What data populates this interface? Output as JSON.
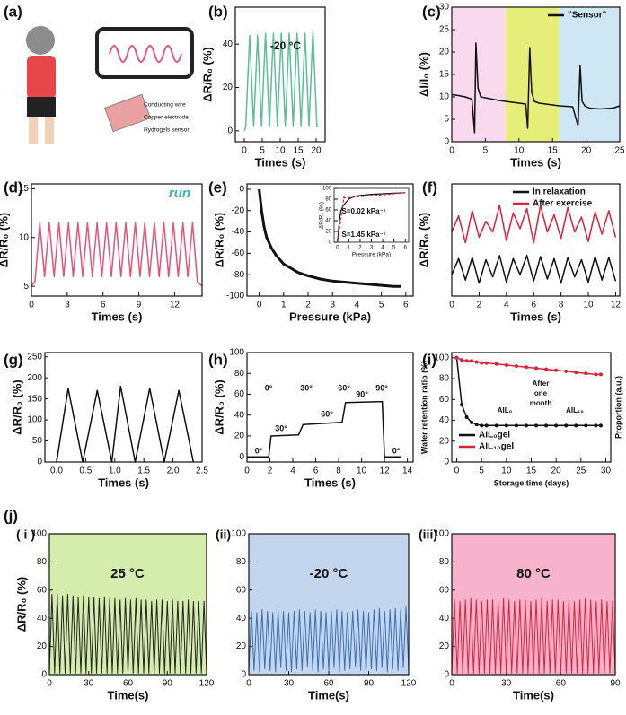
{
  "illustration": {
    "label": "(a)",
    "callouts": [
      "Conducting wire",
      "Copper electrode",
      "Hydrogels sensor"
    ]
  },
  "chart_data": [
    {
      "type": "line",
      "label": "(b)",
      "xlabel": "Times (s)",
      "ylabel": "ΔR/R₀ (%)",
      "annotations": [
        "-20 °C"
      ],
      "xlim": [
        -2.5,
        22.5
      ],
      "xticks": [
        0,
        5,
        10,
        15,
        20
      ],
      "ylim": [
        -5,
        57
      ],
      "yticks": [
        0,
        20,
        40
      ],
      "color": "#5cbf94",
      "x": [
        0,
        0.4,
        1.5,
        2.6,
        3.7,
        4.8,
        5.9,
        7.0,
        8.1,
        9.2,
        10.3,
        11.4,
        12.5,
        13.6,
        14.7,
        15.8,
        16.9,
        18.0,
        19.1,
        20.2,
        20.6
      ],
      "values": [
        0,
        2,
        44,
        2,
        44,
        2,
        45,
        2,
        45,
        2,
        45,
        2,
        45,
        2,
        45,
        2,
        45,
        2,
        46,
        2,
        2
      ]
    },
    {
      "type": "line",
      "label": "(c)",
      "xlabel": "Times (s)",
      "ylabel": "ΔI/I₀ (%)",
      "legend": "upper right",
      "xlim": [
        0,
        25
      ],
      "xticks": [
        0,
        5,
        10,
        15,
        20,
        25
      ],
      "ylim": [
        0,
        30
      ],
      "yticks": [
        0,
        5,
        10,
        15,
        20,
        25,
        30
      ],
      "bands": [
        {
          "from": 0,
          "to": 8,
          "color": "#f9d9ee"
        },
        {
          "from": 8,
          "to": 16,
          "color": "#e6ee7a"
        },
        {
          "from": 16,
          "to": 25,
          "color": "#cfe6f4"
        }
      ],
      "series": [
        {
          "name": "\"Sensor\"",
          "color": "#111111",
          "x": [
            0,
            1,
            2,
            3,
            3.4,
            3.6,
            3.9,
            4.3,
            5,
            6,
            7,
            8,
            9,
            10,
            11,
            11.3,
            11.6,
            11.9,
            12.3,
            13,
            14,
            15,
            16,
            17,
            18,
            18.8,
            19.1,
            19.4,
            19.8,
            20.5,
            22,
            24,
            25
          ],
          "values": [
            10.5,
            10.3,
            10,
            9.5,
            2,
            22,
            12,
            10,
            9.8,
            9.5,
            9.2,
            9,
            8.8,
            8.6,
            8.4,
            3,
            21,
            11,
            9,
            8.6,
            8.4,
            8.2,
            8,
            7.9,
            7.8,
            3.5,
            17,
            9,
            8,
            7.5,
            7.3,
            7.5,
            8
          ]
        }
      ]
    },
    {
      "type": "line",
      "label": "(d)",
      "xlabel": "Times (s)",
      "ylabel": "ΔR/R₀ (%)",
      "annotations": [
        "run"
      ],
      "xlim": [
        0,
        14.3
      ],
      "xticks": [
        0,
        3,
        6,
        9,
        12
      ],
      "ylim": [
        4,
        15.5
      ],
      "yticks": [
        5,
        10,
        15
      ],
      "color": "#e8537a",
      "x": [
        0,
        0.3,
        0.7,
        1.1,
        1.5,
        1.9,
        2.3,
        2.7,
        3.1,
        3.5,
        3.9,
        4.3,
        4.7,
        5.1,
        5.5,
        5.9,
        6.3,
        6.7,
        7.1,
        7.5,
        7.9,
        8.3,
        8.7,
        9.1,
        9.5,
        9.9,
        10.3,
        10.7,
        11.1,
        11.5,
        11.9,
        12.3,
        12.7,
        13.1,
        13.5,
        13.9,
        14.3
      ],
      "values": [
        5,
        5.5,
        11.5,
        6,
        11.5,
        6,
        11.5,
        6,
        11.5,
        6,
        11.5,
        6,
        11.5,
        6,
        11.5,
        6,
        11.5,
        6,
        11.5,
        6,
        11.5,
        6,
        11.5,
        6,
        11.5,
        6,
        11.5,
        6,
        11.5,
        6,
        11.5,
        6,
        11.5,
        6,
        11.5,
        5.5,
        5
      ]
    },
    {
      "type": "line",
      "label": "(e)",
      "xlabel": "Pressure (kPa)",
      "ylabel": "ΔR/R₀ (%)",
      "annotations": [
        "S=0.02 kPa⁻¹",
        "S=1.45 kPa⁻¹"
      ],
      "xlim": [
        -0.5,
        6.3
      ],
      "xticks": [
        0,
        1,
        2,
        3,
        4,
        5,
        6
      ],
      "ylim": [
        -100,
        5
      ],
      "yticks": [
        0,
        -20,
        -40,
        -60,
        -80,
        -100
      ],
      "color": "#111111",
      "x": [
        0,
        0.1,
        0.2,
        0.3,
        0.5,
        0.7,
        1,
        1.3,
        1.6,
        2,
        2.5,
        3,
        3.5,
        4,
        4.5,
        5,
        5.5,
        5.8
      ],
      "values": [
        0,
        -20,
        -35,
        -45,
        -55,
        -62,
        -70,
        -74,
        -78,
        -81,
        -84,
        -86,
        -87,
        -88,
        -89,
        -90,
        -91,
        -91
      ],
      "inset": {
        "xlabel": "Pressure (kPa)",
        "ylabel": "ΔR/R₀ (%)",
        "xlim": [
          -0.3,
          6.3
        ],
        "xticks": [
          0,
          1,
          2,
          3,
          4,
          5,
          6
        ],
        "ylim": [
          0,
          100
        ],
        "yticks": [
          0,
          20,
          40,
          60,
          80,
          100
        ],
        "series": [
          {
            "color": "#111111",
            "x": [
              0,
              0.1,
              0.2,
              0.3,
              0.5,
              0.8,
              1,
              1.5,
              2,
              3,
              4,
              5,
              6
            ],
            "values": [
              0,
              25,
              45,
              58,
              68,
              75,
              80,
              85,
              87,
              89,
              90,
              91,
              92
            ]
          },
          {
            "color": "#e0203a",
            "dashed": true,
            "x": [
              0,
              0.6
            ],
            "values": [
              0,
              87
            ]
          },
          {
            "color": "#e0203a",
            "dashed": true,
            "x": [
              0.5,
              6
            ],
            "values": [
              82,
              92
            ]
          }
        ]
      }
    },
    {
      "type": "line",
      "label": "(f)",
      "xlabel": "Times (s)",
      "ylabel": "ΔR/R₀ (%)",
      "legend": "upper right",
      "xlim": [
        0,
        12.3
      ],
      "xticks": [
        0,
        2,
        4,
        6,
        8,
        10,
        12
      ],
      "ylim": [
        0,
        10.5
      ],
      "x": [
        0,
        0.5,
        1,
        1.5,
        2,
        2.5,
        3,
        3.5,
        4,
        4.5,
        5,
        5.5,
        6,
        6.5,
        7,
        7.5,
        8,
        8.5,
        9,
        9.5,
        10,
        10.5,
        11,
        11.5,
        12
      ],
      "series": [
        {
          "name": "In relaxation",
          "color": "#111111",
          "values": [
            2,
            3.5,
            1.5,
            3.6,
            1.2,
            3.4,
            1.8,
            3.8,
            1.3,
            3.5,
            2,
            3.8,
            1.4,
            3.7,
            1.6,
            3.5,
            1.2,
            3.6,
            1.8,
            3.4,
            1.3,
            3.7,
            1.5,
            3.6,
            1.4
          ]
        },
        {
          "name": "After exercise",
          "color": "#e0203a",
          "values": [
            6,
            7.5,
            5,
            8,
            5.5,
            7,
            6,
            8.5,
            5.2,
            7.8,
            6.3,
            8.2,
            5,
            8.5,
            6,
            7.6,
            5.4,
            8.3,
            6,
            7.4,
            5.1,
            7.9,
            5.8,
            8,
            5.5
          ]
        }
      ]
    },
    {
      "type": "line",
      "label": "(g)",
      "xlabel": "Times (s)",
      "ylabel": "ΔR/R₀ (%)",
      "xlim": [
        -0.2,
        2.5
      ],
      "xticks": [
        {
          "value": 0,
          "label": "0.0"
        },
        {
          "value": 0.5,
          "label": "0.5"
        },
        {
          "value": 1,
          "label": "1.0"
        },
        {
          "value": 1.5,
          "label": "1.5"
        },
        {
          "value": 2,
          "label": "2.0"
        },
        {
          "value": 2.5,
          "label": "2.5"
        }
      ],
      "ylim": [
        0,
        260
      ],
      "yticks": [
        0,
        50,
        100,
        150,
        200,
        250
      ],
      "color": "#111111",
      "x": [
        0,
        0.2,
        0.45,
        0.7,
        0.95,
        1.1,
        1.35,
        1.6,
        1.85,
        2.1,
        2.35
      ],
      "values": [
        0,
        175,
        0,
        170,
        0,
        180,
        0,
        175,
        0,
        170,
        0
      ]
    },
    {
      "type": "line",
      "label": "(h)",
      "xlabel": "Times (s)",
      "ylabel": "ΔR/R₀ (%)",
      "annotations": [
        "0°",
        "30°",
        "60°",
        "90°",
        "0°",
        "30°",
        "60°",
        "90°",
        "0°"
      ],
      "xlim": [
        0,
        14.5
      ],
      "xticks": [
        0,
        2,
        4,
        6,
        8,
        10,
        12,
        14
      ],
      "ylim": [
        -5,
        100
      ],
      "yticks": [
        0,
        20,
        40,
        60,
        80,
        100
      ],
      "color": "#111111",
      "x": [
        0,
        1.9,
        2.1,
        4.5,
        4.9,
        8.3,
        8.6,
        11.8,
        12,
        13.5
      ],
      "values": [
        0,
        0,
        20,
        21,
        31,
        33,
        52,
        53,
        0,
        0
      ]
    },
    {
      "type": "line",
      "label": "(i)",
      "xlabel": "Storage time (days)",
      "ylabel": "Water retention ratio (%)",
      "y2label": "Proportion (a.u.)",
      "legend": "lower left",
      "annotations": [
        "After",
        "one",
        "month",
        "AIL₀",
        "AIL₁₀"
      ],
      "xlim": [
        -1,
        31
      ],
      "xticks": [
        0,
        5,
        10,
        15,
        20,
        25,
        30
      ],
      "ylim": [
        0,
        105
      ],
      "yticks": [
        0,
        20,
        40,
        60,
        80,
        100
      ],
      "x": [
        0,
        1,
        2,
        3,
        4,
        5,
        6,
        8,
        10,
        12,
        14,
        16,
        18,
        20,
        22,
        24,
        26,
        28,
        29
      ],
      "series": [
        {
          "name": "AIL₀gel",
          "color": "#111111",
          "markers": true,
          "values": [
            100,
            55,
            43,
            38,
            36,
            35,
            35,
            35,
            35,
            35,
            35,
            35,
            35,
            35,
            35,
            35,
            35,
            35,
            35
          ]
        },
        {
          "name": "AIL₁₀gel",
          "color": "#e0203a",
          "markers": true,
          "values": [
            100,
            98,
            97,
            97,
            96,
            95,
            95,
            94,
            93,
            92,
            91,
            90,
            89,
            88,
            87,
            86,
            85,
            84,
            84
          ]
        }
      ]
    },
    {
      "type": "line",
      "group_label": "(j)",
      "label": "( i )",
      "xlabel": "Time(s)",
      "ylabel": "ΔR/R₀ (%)",
      "annotations": [
        "25 °C"
      ],
      "background": "#d4ecac",
      "xlim": [
        0,
        120
      ],
      "xticks": [
        0,
        30,
        60,
        90,
        120
      ],
      "ylim": [
        0,
        100
      ],
      "yticks": [
        0,
        20,
        40,
        60,
        80,
        100
      ],
      "color": "#222222",
      "x": [
        0,
        2,
        4,
        6,
        8,
        10,
        12,
        14,
        16,
        18,
        20,
        22,
        24,
        26,
        28,
        30,
        32,
        34,
        36,
        38,
        40,
        42,
        44,
        46,
        48,
        50,
        52,
        54,
        56,
        58,
        60,
        62,
        64,
        66,
        68,
        70,
        72,
        74,
        76,
        78,
        80,
        82,
        84,
        86,
        88,
        90,
        92,
        94,
        96,
        98,
        100,
        102,
        104,
        106,
        108,
        110,
        112,
        114,
        116,
        118,
        120
      ],
      "values": [
        1,
        57,
        1,
        57,
        1,
        56,
        1,
        57,
        1,
        56,
        1,
        55,
        1,
        56,
        1,
        55,
        1,
        55,
        1,
        54,
        1,
        55,
        1,
        54,
        1,
        54,
        1,
        53,
        1,
        54,
        1,
        53,
        1,
        54,
        1,
        53,
        1,
        53,
        1,
        52,
        1,
        53,
        1,
        53,
        1,
        52,
        1,
        53,
        1,
        52,
        1,
        52,
        1,
        53,
        1,
        52,
        1,
        52,
        1,
        52,
        1
      ]
    },
    {
      "type": "line",
      "label": "(ii)",
      "xlabel": "Time(s)",
      "annotations": [
        "-20 °C"
      ],
      "background": "#c3d6ee",
      "xlim": [
        0,
        120
      ],
      "xticks": [
        0,
        30,
        60,
        90,
        120
      ],
      "ylim": [
        0,
        100
      ],
      "yticks": [
        0,
        20,
        40,
        60,
        80,
        100
      ],
      "color": "#3b6fb6",
      "x": [
        0,
        2,
        4,
        6,
        8,
        10,
        12,
        14,
        16,
        18,
        20,
        22,
        24,
        26,
        28,
        30,
        32,
        34,
        36,
        38,
        40,
        42,
        44,
        46,
        48,
        50,
        52,
        54,
        56,
        58,
        60,
        62,
        64,
        66,
        68,
        70,
        72,
        74,
        76,
        78,
        80,
        82,
        84,
        86,
        88,
        90,
        92,
        94,
        96,
        98,
        100,
        102,
        104,
        106,
        108,
        110,
        112,
        114,
        116,
        118,
        120
      ],
      "values": [
        2,
        45,
        3,
        44,
        2,
        46,
        4,
        45,
        3,
        44,
        2,
        46,
        5,
        45,
        3,
        44,
        2,
        45,
        4,
        46,
        3,
        45,
        6,
        44,
        3,
        46,
        2,
        45,
        4,
        44,
        3,
        45,
        5,
        46,
        2,
        45,
        3,
        44,
        4,
        45,
        6,
        46,
        3,
        45,
        2,
        44,
        4,
        46,
        3,
        47,
        5,
        45,
        2,
        46,
        4,
        47,
        3,
        46,
        5,
        48,
        3
      ]
    },
    {
      "type": "line",
      "label": "(iii)",
      "xlabel": "Time(s)",
      "annotations": [
        "80 °C"
      ],
      "background": "#f6b3cb",
      "xlim": [
        0,
        90
      ],
      "xticks": [
        0,
        30,
        60,
        90
      ],
      "ylim": [
        0,
        100
      ],
      "yticks": [
        0,
        20,
        40,
        60,
        80,
        100
      ],
      "color": "#e0203a",
      "x": [
        0,
        1.5,
        3,
        4.5,
        6,
        7.5,
        9,
        10.5,
        12,
        13.5,
        15,
        16.5,
        18,
        19.5,
        21,
        22.5,
        24,
        25.5,
        27,
        28.5,
        30,
        31.5,
        33,
        34.5,
        36,
        37.5,
        39,
        40.5,
        42,
        43.5,
        45,
        46.5,
        48,
        49.5,
        51,
        52.5,
        54,
        55.5,
        57,
        58.5,
        60,
        61.5,
        63,
        64.5,
        66,
        67.5,
        69,
        70.5,
        72,
        73.5,
        75,
        76.5,
        78,
        79.5,
        81,
        82.5,
        84,
        85.5,
        87,
        88.5,
        90
      ],
      "values": [
        1,
        53,
        1,
        52,
        1,
        53,
        1,
        54,
        1,
        53,
        1,
        52,
        1,
        53,
        1,
        53,
        1,
        52,
        1,
        54,
        1,
        53,
        1,
        52,
        1,
        53,
        1,
        53,
        1,
        52,
        1,
        53,
        1,
        54,
        1,
        52,
        1,
        53,
        1,
        53,
        1,
        52,
        1,
        53,
        1,
        52,
        1,
        53,
        1,
        54,
        1,
        53,
        1,
        52,
        1,
        53,
        1,
        52,
        1,
        52,
        1
      ]
    }
  ]
}
